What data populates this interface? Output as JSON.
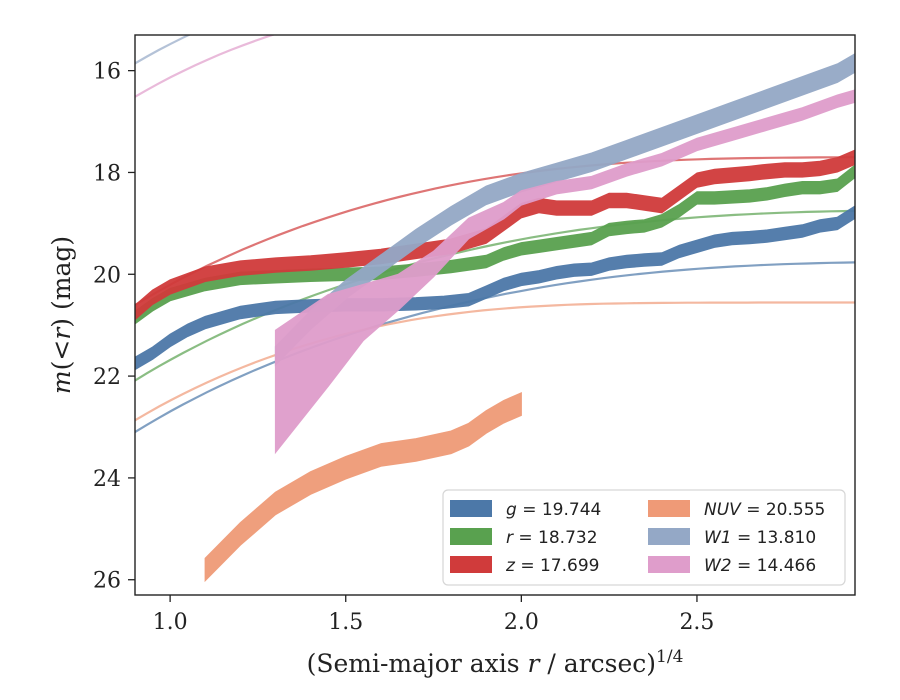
{
  "chart_data": {
    "type": "line",
    "xlabel": "(Semi-major axis r / arcsec)1/4",
    "xlabel_parts": {
      "main": "(Semi-major axis ",
      "var": "r",
      "rest": " / arcsec)",
      "sup": "1/4"
    },
    "ylabel": "m(< r) (mag)",
    "ylabel_parts": {
      "m": "m",
      "open": "(<",
      "r": "r",
      "close": ") (mag)"
    },
    "xlim": [
      0.9,
      2.95
    ],
    "ylim": [
      26.3,
      15.3
    ],
    "y_inverted": true,
    "xticks": [
      1.0,
      1.5,
      2.0,
      2.5
    ],
    "xtick_labels": [
      "1.0",
      "1.5",
      "2.0",
      "2.5"
    ],
    "yticks": [
      16,
      18,
      20,
      22,
      24,
      26
    ],
    "ytick_labels": [
      "16",
      "18",
      "20",
      "22",
      "24",
      "26"
    ],
    "grid": false,
    "legend_position": "lower-right",
    "series": [
      {
        "name": "g = 19.744",
        "var": "g",
        "val": "19.744",
        "color": "#4c78a8",
        "kind": "measured",
        "x": [
          0.9,
          0.95,
          1.0,
          1.05,
          1.1,
          1.2,
          1.3,
          1.4,
          1.5,
          1.6,
          1.7,
          1.78,
          1.85,
          1.9,
          1.95,
          2.0,
          2.05,
          2.1,
          2.15,
          2.2,
          2.25,
          2.3,
          2.35,
          2.4,
          2.45,
          2.5,
          2.55,
          2.6,
          2.65,
          2.7,
          2.75,
          2.8,
          2.85,
          2.9,
          2.95
        ],
        "y": [
          21.75,
          21.55,
          21.3,
          21.1,
          20.95,
          20.75,
          20.65,
          20.62,
          20.6,
          20.6,
          20.58,
          20.55,
          20.5,
          20.35,
          20.2,
          20.1,
          20.05,
          19.97,
          19.92,
          19.9,
          19.8,
          19.75,
          19.72,
          19.7,
          19.55,
          19.45,
          19.35,
          19.3,
          19.28,
          19.25,
          19.2,
          19.15,
          19.05,
          19.0,
          18.78
        ],
        "width": [
          0.12
        ],
        "fit": {
          "a": 19.744,
          "b": -2.0,
          "c": 0.05
        }
      },
      {
        "name": "r = 18.732",
        "var": "r",
        "val": "18.732",
        "color": "#59a14f",
        "kind": "measured",
        "x": [
          0.9,
          0.95,
          1.0,
          1.1,
          1.2,
          1.3,
          1.4,
          1.5,
          1.6,
          1.7,
          1.8,
          1.9,
          1.95,
          2.0,
          2.05,
          2.1,
          2.2,
          2.25,
          2.3,
          2.35,
          2.4,
          2.45,
          2.5,
          2.55,
          2.6,
          2.65,
          2.7,
          2.75,
          2.8,
          2.85,
          2.9,
          2.95
        ],
        "y": [
          20.85,
          20.6,
          20.4,
          20.2,
          20.08,
          20.05,
          20.02,
          20.0,
          19.98,
          19.92,
          19.85,
          19.75,
          19.6,
          19.5,
          19.45,
          19.4,
          19.3,
          19.12,
          19.08,
          19.05,
          18.95,
          18.75,
          18.5,
          18.5,
          18.48,
          18.46,
          18.42,
          18.35,
          18.3,
          18.3,
          18.25,
          17.98
        ],
        "width": [
          0.12
        ],
        "fit": {
          "a": 18.732,
          "b": -2.2,
          "c": 0.05
        }
      },
      {
        "name": "z = 17.699",
        "var": "z",
        "val": "17.699",
        "color": "#d03b3b",
        "kind": "measured",
        "x": [
          0.9,
          0.95,
          1.0,
          1.1,
          1.2,
          1.3,
          1.4,
          1.5,
          1.6,
          1.7,
          1.8,
          1.9,
          1.95,
          2.0,
          2.05,
          2.1,
          2.2,
          2.25,
          2.3,
          2.35,
          2.4,
          2.45,
          2.5,
          2.55,
          2.6,
          2.65,
          2.7,
          2.75,
          2.8,
          2.85,
          2.9,
          2.95
        ],
        "y": [
          20.75,
          20.45,
          20.25,
          20.0,
          19.88,
          19.82,
          19.78,
          19.72,
          19.65,
          19.55,
          19.45,
          19.25,
          19.0,
          18.75,
          18.65,
          18.7,
          18.7,
          18.55,
          18.55,
          18.6,
          18.65,
          18.4,
          18.15,
          18.08,
          18.05,
          18.02,
          17.98,
          17.95,
          17.95,
          17.92,
          17.85,
          17.7
        ],
        "width": [
          0.14
        ],
        "fit": {
          "a": 17.699,
          "b": -3.0,
          "c": 0.08
        }
      },
      {
        "name": "NUV = 20.555",
        "var": "NUV",
        "val": "20.555",
        "color": "#ef9a77",
        "kind": "measured",
        "x": [
          1.1,
          1.2,
          1.3,
          1.4,
          1.5,
          1.6,
          1.7,
          1.8,
          1.85,
          1.9,
          1.95,
          2.0
        ],
        "y": [
          25.8,
          25.1,
          24.5,
          24.1,
          23.8,
          23.55,
          23.45,
          23.3,
          23.15,
          22.9,
          22.7,
          22.55
        ],
        "width": [
          0.22
        ],
        "fit": {
          "a": 20.555,
          "b": -3.5,
          "c": 0.15
        }
      },
      {
        "name": "W1 = 13.810",
        "var": "W1",
        "val": "13.810",
        "color": "#94a8c6",
        "kind": "measured",
        "x": [
          1.3,
          1.4,
          1.5,
          1.6,
          1.7,
          1.8,
          1.9,
          2.0,
          2.1,
          2.2,
          2.3,
          2.4,
          2.5,
          2.6,
          2.7,
          2.8,
          2.9,
          2.95
        ],
        "y": [
          21.6,
          20.9,
          20.3,
          19.8,
          19.3,
          18.85,
          18.45,
          18.2,
          18.0,
          17.8,
          17.55,
          17.3,
          17.05,
          16.8,
          16.55,
          16.3,
          16.05,
          15.85
        ],
        "width": [
          0.18
        ],
        "fit": {
          "a": 13.81,
          "b": -10.0,
          "c": 0.2
        }
      },
      {
        "name": "W2 = 14.466",
        "var": "W2",
        "val": "14.466",
        "color": "#df9dcb",
        "kind": "band",
        "x": [
          1.3,
          1.45,
          1.55,
          1.65,
          1.75,
          1.85,
          1.95,
          2.0,
          2.1,
          2.2,
          2.3,
          2.4,
          2.5,
          2.6,
          2.7,
          2.8,
          2.9,
          2.95
        ],
        "y": [
          22.3,
          21.3,
          20.75,
          20.35,
          19.8,
          19.1,
          18.75,
          18.5,
          18.3,
          18.2,
          17.95,
          17.75,
          17.45,
          17.25,
          17.05,
          16.85,
          16.6,
          16.5
        ],
        "width": [
          1.2,
          0.9,
          0.55,
          0.35,
          0.25,
          0.2,
          0.16,
          0.14,
          0.12,
          0.12,
          0.12,
          0.12,
          0.12,
          0.12,
          0.12,
          0.12,
          0.12,
          0.12
        ],
        "fit": {
          "a": 14.466,
          "b": -9.5,
          "c": 0.2
        }
      }
    ],
    "legend": {
      "columns": [
        [
          "g = 19.744",
          "r = 18.732",
          "z = 17.699"
        ],
        [
          "NUV = 20.555",
          "W1 = 13.810",
          "W2 = 14.466"
        ]
      ]
    }
  }
}
